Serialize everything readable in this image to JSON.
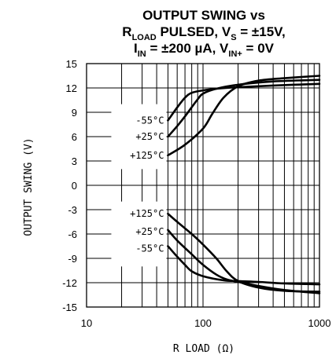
{
  "title": {
    "line1": "OUTPUT SWING vs",
    "line2": {
      "a": "R",
      "a_sub": "LOAD",
      "b": " PULSED, V",
      "b_sub": "S",
      "c": " = ±15V,"
    },
    "line3": {
      "a": "I",
      "a_sub": "IN",
      "b": " = ±200 µA, V",
      "b_sub": "IN+",
      "c": " = 0V"
    }
  },
  "chart_data": {
    "type": "line",
    "x_scale": "log",
    "xlim": [
      10,
      1000
    ],
    "ylim": [
      -15,
      15
    ],
    "grid": true,
    "xlabel": "R LOAD (Ω)",
    "ylabel": "OUTPUT SWING (V)",
    "x_ticks": [
      10,
      100,
      1000
    ],
    "x_tick_labels": [
      "10",
      "100",
      "1000"
    ],
    "y_ticks": [
      15,
      12,
      9,
      6,
      3,
      0,
      -3,
      -6,
      -9,
      -12,
      -15
    ],
    "y_tick_labels": [
      "15",
      "12",
      "9",
      "6",
      "3",
      "0",
      "-3",
      "-6",
      "-9",
      "-12",
      "-15"
    ],
    "series_labels_positive": [
      "-55°C",
      "+25°C",
      "+125°C"
    ],
    "series_labels_negative": [
      "+125°C",
      "+25°C",
      "-55°C"
    ],
    "series": [
      {
        "name": "-55°C",
        "side": "positive",
        "x": [
          50,
          60,
          70,
          80,
          100,
          130,
          200,
          400,
          1000
        ],
        "y": [
          8.0,
          9.6,
          10.8,
          11.4,
          11.7,
          11.9,
          12.1,
          12.3,
          12.5
        ]
      },
      {
        "name": "+25°C",
        "side": "positive",
        "x": [
          50,
          60,
          70,
          90,
          100,
          130,
          200,
          400,
          1000
        ],
        "y": [
          6.0,
          7.3,
          8.5,
          10.6,
          11.3,
          11.9,
          12.4,
          12.8,
          13.0
        ]
      },
      {
        "name": "+125°C",
        "side": "positive",
        "x": [
          50,
          70,
          100,
          120,
          150,
          200,
          300,
          500,
          1000
        ],
        "y": [
          3.7,
          5.0,
          7.0,
          8.8,
          10.8,
          12.2,
          12.9,
          13.2,
          13.5
        ]
      },
      {
        "name": "+125°C",
        "side": "negative",
        "x": [
          50,
          60,
          80,
          100,
          130,
          160,
          200,
          300,
          500,
          1000
        ],
        "y": [
          -3.5,
          -4.5,
          -6.0,
          -7.3,
          -9.0,
          -10.6,
          -11.8,
          -12.6,
          -13.0,
          -13.1
        ]
      },
      {
        "name": "+25°C",
        "side": "negative",
        "x": [
          50,
          60,
          80,
          100,
          130,
          160,
          200,
          300,
          500,
          1000
        ],
        "y": [
          -5.5,
          -6.8,
          -8.5,
          -9.8,
          -11.0,
          -11.6,
          -11.9,
          -12.4,
          -12.9,
          -13.3
        ]
      },
      {
        "name": "-55°C",
        "side": "negative",
        "x": [
          50,
          60,
          70,
          80,
          100,
          150,
          200,
          300,
          500,
          1000
        ],
        "y": [
          -7.5,
          -8.8,
          -9.8,
          -10.6,
          -11.2,
          -11.7,
          -11.8,
          -11.9,
          -12.1,
          -12.2
        ]
      }
    ]
  }
}
